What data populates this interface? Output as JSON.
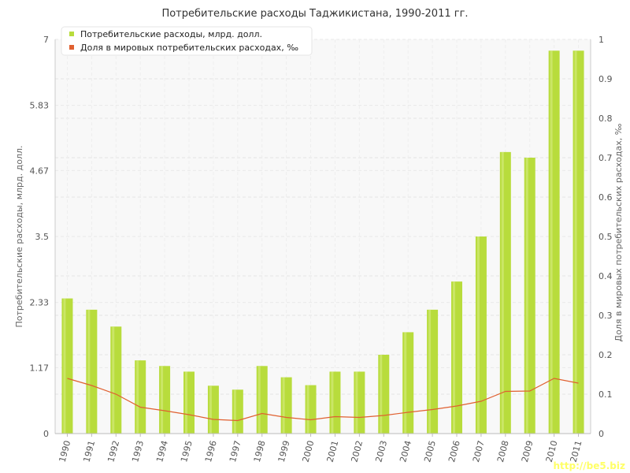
{
  "chart_data": {
    "type": "bar",
    "title": "Потребительские расходы Таджикистана, 1990-2011 гг.",
    "categories": [
      "1990",
      "1991",
      "1992",
      "1993",
      "1994",
      "1995",
      "1996",
      "1997",
      "1998",
      "1999",
      "2000",
      "2001",
      "2002",
      "2003",
      "2004",
      "2005",
      "2006",
      "2007",
      "2008",
      "2009",
      "2010",
      "2011"
    ],
    "series": [
      {
        "name": "Потребительские расходы, млрд. долл.",
        "type": "bar",
        "axis": "left",
        "color": "#b8dc3c",
        "values": [
          2.4,
          2.2,
          1.9,
          1.3,
          1.2,
          1.1,
          0.85,
          0.78,
          1.2,
          1.0,
          0.86,
          1.1,
          1.1,
          1.4,
          1.8,
          2.2,
          2.7,
          3.5,
          5.0,
          4.9,
          6.8,
          6.8
        ]
      },
      {
        "name": "Доля в мировых потребительских расходах, ‰",
        "type": "line",
        "axis": "right",
        "color": "#e06030",
        "values": [
          0.14,
          0.122,
          0.1,
          0.067,
          0.058,
          0.048,
          0.036,
          0.033,
          0.051,
          0.041,
          0.035,
          0.043,
          0.041,
          0.046,
          0.054,
          0.061,
          0.07,
          0.082,
          0.107,
          0.108,
          0.14,
          0.128
        ]
      }
    ],
    "ylabel_left": "Потребительские расходы, млрд. долл.",
    "ylabel_right": "Доля в мировых потребительских расходах, ‰",
    "ylim_left": [
      0,
      7
    ],
    "ylim_right": [
      0,
      1
    ],
    "yticks_left": [
      "0",
      "1.17",
      "2.33",
      "3.5",
      "4.67",
      "5.83",
      "7"
    ],
    "yticks_right": [
      "0",
      "0.1",
      "0.2",
      "0.3",
      "0.4",
      "0.5",
      "0.6",
      "0.7",
      "0.8",
      "0.9",
      "1"
    ],
    "grid": true,
    "legend_position": "top-left"
  },
  "watermark": "http://be5.biz"
}
